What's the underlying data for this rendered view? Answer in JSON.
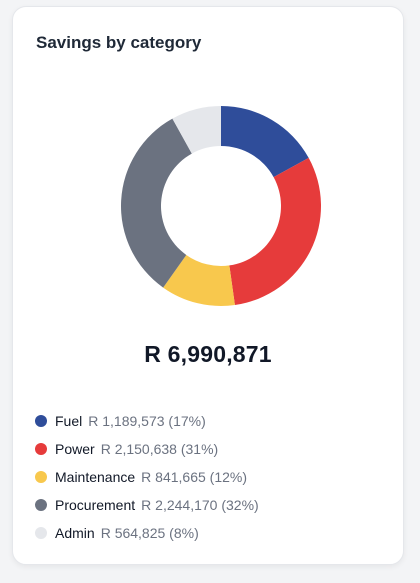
{
  "card": {
    "title": "Savings by category",
    "total_label": "R 6,990,871"
  },
  "chart_data": {
    "type": "pie",
    "donut": true,
    "title": "Savings by category",
    "total": 6990871,
    "categories": [
      "Fuel",
      "Power",
      "Maintenance",
      "Procurement",
      "Admin"
    ],
    "values": [
      1189573,
      2150638,
      841665,
      2244170,
      564825
    ],
    "colors": [
      "#2f4d9a",
      "#e63b3b",
      "#f8c84d",
      "#6b7280",
      "#e5e7eb"
    ],
    "legend_position": "bottom"
  },
  "legend": [
    {
      "name": "Fuel",
      "value": "R 1,189,573 (17%)",
      "color": "#2f4d9a"
    },
    {
      "name": "Power",
      "value": "R 2,150,638 (31%)",
      "color": "#e63b3b"
    },
    {
      "name": "Maintenance",
      "value": "R 841,665 (12%)",
      "color": "#f8c84d"
    },
    {
      "name": "Procurement",
      "value": "R 2,244,170 (32%)",
      "color": "#6b7280"
    },
    {
      "name": "Admin",
      "value": "R 564,825 (8%)",
      "color": "#e5e7eb"
    }
  ]
}
